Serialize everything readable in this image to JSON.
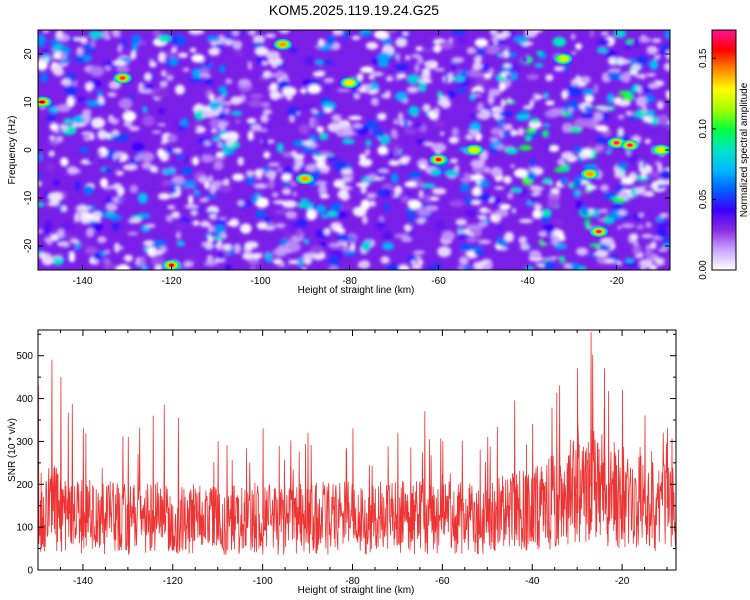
{
  "chart_data": [
    {
      "type": "heatmap",
      "title": "KOM5.2025.119.19.24.G25",
      "xlabel": "Height of straight line (km)",
      "ylabel": "Frequency (Hz)",
      "xlim": [
        -150,
        -8
      ],
      "ylim": [
        -25,
        25
      ],
      "xticks": [
        -140,
        -120,
        -100,
        -80,
        -60,
        -40,
        -20
      ],
      "yticks": [
        -20,
        -10,
        0,
        10,
        20
      ],
      "colorbar": {
        "label": "Normalized spectral amplitude",
        "range": [
          0,
          0.17
        ],
        "ticks": [
          "0.00",
          "0.05",
          "0.10",
          "0.15"
        ],
        "ticks_values": [
          0,
          0.05,
          0.1,
          0.15
        ],
        "colors": [
          "#ffffff",
          "#c9a6ff",
          "#8a2be2",
          "#3a00ff",
          "#0060ff",
          "#00b8ff",
          "#00e6c8",
          "#00ff40",
          "#a0ff00",
          "#ffff00",
          "#ff8c00",
          "#ff0000",
          "#ff1493"
        ]
      },
      "hotspots": [
        {
          "x": -149,
          "y": 10,
          "value": 0.16
        },
        {
          "x": -131,
          "y": 15,
          "value": 0.15
        },
        {
          "x": -120,
          "y": -24,
          "value": 0.16
        },
        {
          "x": -95,
          "y": 22,
          "value": 0.14
        },
        {
          "x": -90,
          "y": -6,
          "value": 0.14
        },
        {
          "x": -80,
          "y": 14,
          "value": 0.13
        },
        {
          "x": -60,
          "y": -2,
          "value": 0.16
        },
        {
          "x": -52,
          "y": 0,
          "value": 0.12
        },
        {
          "x": -32,
          "y": 19,
          "value": 0.12
        },
        {
          "x": -26,
          "y": -5,
          "value": 0.14
        },
        {
          "x": -24,
          "y": -17,
          "value": 0.17
        },
        {
          "x": -20,
          "y": 1.5,
          "value": 0.17
        },
        {
          "x": -17,
          "y": 1,
          "value": 0.17
        },
        {
          "x": -10,
          "y": 0,
          "value": 0.12
        }
      ]
    },
    {
      "type": "line",
      "xlabel": "Height of straight line (km)",
      "ylabel": "SNR (10 * v/v)",
      "xlim": [
        -150,
        -8
      ],
      "ylim": [
        0,
        560
      ],
      "xticks": [
        -140,
        -120,
        -100,
        -80,
        -60,
        -40,
        -20
      ],
      "yticks": [
        0,
        100,
        200,
        300,
        400,
        500
      ],
      "line_color": "#ee3333",
      "envelope": [
        {
          "x": -150,
          "mean": 130,
          "peak": 430
        },
        {
          "x": -147,
          "mean": 150,
          "peak": 490
        },
        {
          "x": -145,
          "mean": 135,
          "peak": 450
        },
        {
          "x": -140,
          "mean": 125,
          "peak": 330
        },
        {
          "x": -130,
          "mean": 120,
          "peak": 310
        },
        {
          "x": -122,
          "mean": 120,
          "peak": 385
        },
        {
          "x": -110,
          "mean": 115,
          "peak": 300
        },
        {
          "x": -100,
          "mean": 118,
          "peak": 330
        },
        {
          "x": -90,
          "mean": 120,
          "peak": 320
        },
        {
          "x": -80,
          "mean": 122,
          "peak": 330
        },
        {
          "x": -70,
          "mean": 122,
          "peak": 320
        },
        {
          "x": -64,
          "mean": 125,
          "peak": 370
        },
        {
          "x": -60,
          "mean": 122,
          "peak": 300
        },
        {
          "x": -50,
          "mean": 125,
          "peak": 310
        },
        {
          "x": -44,
          "mean": 135,
          "peak": 395
        },
        {
          "x": -40,
          "mean": 140,
          "peak": 340
        },
        {
          "x": -34,
          "mean": 165,
          "peak": 430
        },
        {
          "x": -30,
          "mean": 190,
          "peak": 470
        },
        {
          "x": -27,
          "mean": 195,
          "peak": 555
        },
        {
          "x": -24,
          "mean": 185,
          "peak": 470
        },
        {
          "x": -20,
          "mean": 170,
          "peak": 420
        },
        {
          "x": -15,
          "mean": 155,
          "peak": 360
        },
        {
          "x": -10,
          "mean": 145,
          "peak": 330
        },
        {
          "x": -8,
          "mean": 140,
          "peak": 300
        }
      ]
    }
  ]
}
